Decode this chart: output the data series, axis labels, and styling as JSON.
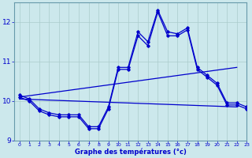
{
  "xlabel": "Graphe des températures (°c)",
  "background_color": "#cce8ec",
  "grid_color": "#aacccc",
  "line_color": "#0000cc",
  "xlim": [
    -0.5,
    23
  ],
  "ylim": [
    9.0,
    12.5
  ],
  "yticks": [
    9,
    10,
    11,
    12
  ],
  "xticks": [
    0,
    1,
    2,
    3,
    4,
    5,
    6,
    7,
    8,
    9,
    10,
    11,
    12,
    13,
    14,
    15,
    16,
    17,
    18,
    19,
    20,
    21,
    22,
    23
  ],
  "curve1_x": [
    0,
    1,
    2,
    3,
    4,
    5,
    6,
    7,
    8,
    9,
    10,
    11,
    12,
    13,
    14,
    15,
    16,
    17,
    18,
    19,
    20,
    21,
    22,
    23
  ],
  "curve1_y": [
    10.15,
    10.05,
    9.8,
    9.7,
    9.65,
    9.65,
    9.65,
    9.35,
    9.35,
    9.85,
    10.85,
    10.85,
    11.75,
    11.5,
    12.3,
    11.75,
    11.7,
    11.85,
    10.85,
    10.65,
    10.45,
    9.95,
    9.95,
    9.85
  ],
  "curve2_x": [
    0,
    1,
    2,
    3,
    4,
    5,
    6,
    7,
    8,
    9,
    10,
    11,
    12,
    13,
    14,
    15,
    16,
    17,
    18,
    19,
    20,
    21,
    22,
    23
  ],
  "curve2_y": [
    10.1,
    10.0,
    9.75,
    9.65,
    9.6,
    9.6,
    9.6,
    9.3,
    9.3,
    9.8,
    10.8,
    10.8,
    11.65,
    11.4,
    12.25,
    11.65,
    11.65,
    11.8,
    10.8,
    10.6,
    10.4,
    9.9,
    9.9,
    9.8
  ],
  "line1_x": [
    0,
    22
  ],
  "line1_y": [
    10.1,
    10.85
  ],
  "line2_x": [
    0,
    22
  ],
  "line2_y": [
    10.05,
    9.85
  ]
}
